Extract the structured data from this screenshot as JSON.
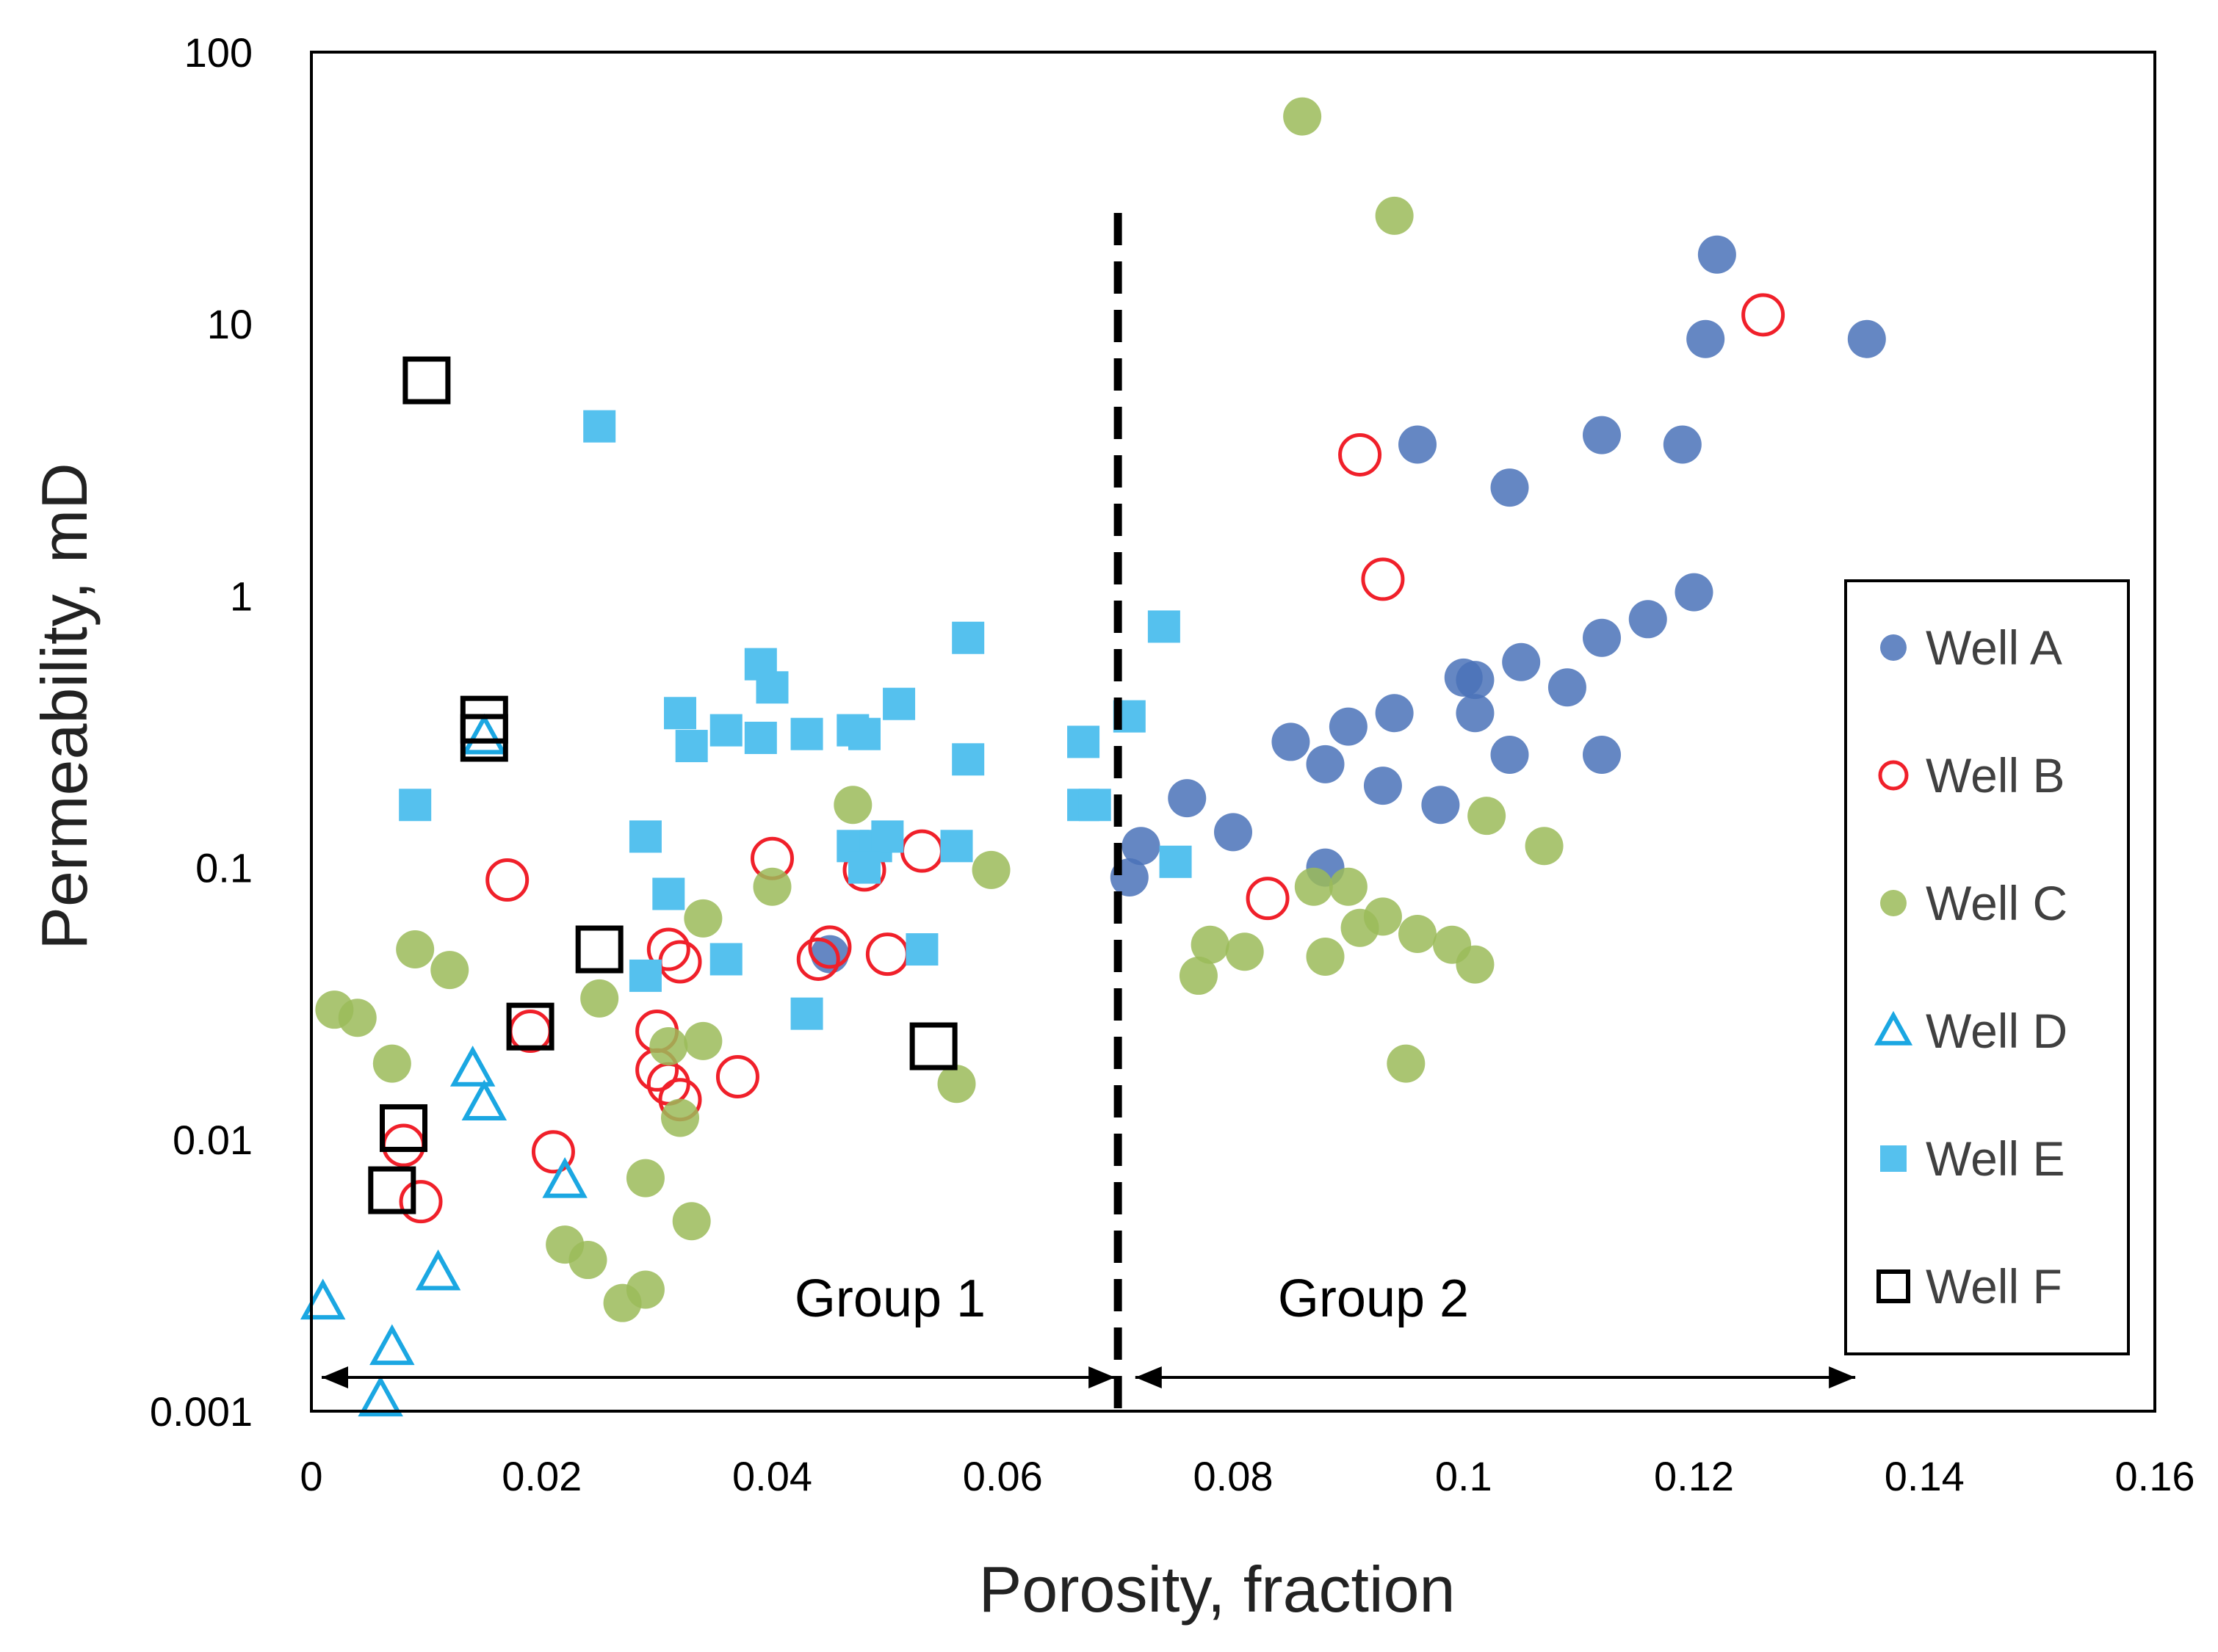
{
  "chart_data": {
    "type": "scatter",
    "title": "",
    "xlabel": "Porosity, fraction",
    "ylabel": "Permeability, mD",
    "xlim": [
      0,
      0.16
    ],
    "ylim": [
      0.001,
      100
    ],
    "yscale": "log",
    "x_ticks": [
      "0",
      "0.02",
      "0.04",
      "0.06",
      "0.08",
      "0.1",
      "0.12",
      "0.14",
      "0.16"
    ],
    "y_ticks": [
      "100",
      "10",
      "1",
      "0.1",
      "0.01",
      "0.001"
    ],
    "grid": false,
    "legend_position": "right",
    "divider_x": 0.07,
    "groups": [
      {
        "label": "Group 1",
        "x_range": [
          0,
          0.07
        ],
        "label_x": 0.05,
        "label_y": 0.0025
      },
      {
        "label": "Group 2",
        "x_range": [
          0.071,
          0.134
        ],
        "label_x": 0.092,
        "label_y": 0.0025
      }
    ],
    "series": [
      {
        "name": "Well A",
        "marker": "filled-circle",
        "color": "#4A72B8",
        "points": [
          [
            0.122,
            18
          ],
          [
            0.121,
            8.8
          ],
          [
            0.135,
            8.8
          ],
          [
            0.112,
            3.9
          ],
          [
            0.119,
            3.6
          ],
          [
            0.096,
            3.6
          ],
          [
            0.104,
            2.5
          ],
          [
            0.12,
            1.03
          ],
          [
            0.116,
            0.82
          ],
          [
            0.112,
            0.7
          ],
          [
            0.105,
            0.57
          ],
          [
            0.1,
            0.5
          ],
          [
            0.101,
            0.49
          ],
          [
            0.109,
            0.46
          ],
          [
            0.101,
            0.37
          ],
          [
            0.094,
            0.37
          ],
          [
            0.09,
            0.33
          ],
          [
            0.085,
            0.29
          ],
          [
            0.088,
            0.24
          ],
          [
            0.104,
            0.26
          ],
          [
            0.112,
            0.26
          ],
          [
            0.093,
            0.2
          ],
          [
            0.098,
            0.17
          ],
          [
            0.076,
            0.18
          ],
          [
            0.08,
            0.135
          ],
          [
            0.072,
            0.12
          ],
          [
            0.071,
            0.092
          ],
          [
            0.088,
            0.1
          ],
          [
            0.045,
            0.048
          ]
        ]
      },
      {
        "name": "Well B",
        "marker": "open-circle",
        "color": "#F0202A",
        "points": [
          [
            0.126,
            10.8
          ],
          [
            0.091,
            3.3
          ],
          [
            0.093,
            1.15
          ],
          [
            0.083,
            0.077
          ],
          [
            0.017,
            0.09
          ],
          [
            0.04,
            0.108
          ],
          [
            0.048,
            0.098
          ],
          [
            0.053,
            0.115
          ],
          [
            0.031,
            0.05
          ],
          [
            0.032,
            0.045
          ],
          [
            0.044,
            0.046
          ],
          [
            0.045,
            0.051
          ],
          [
            0.05,
            0.048
          ],
          [
            0.019,
            0.025
          ],
          [
            0.03,
            0.025
          ],
          [
            0.03,
            0.018
          ],
          [
            0.031,
            0.016
          ],
          [
            0.032,
            0.014
          ],
          [
            0.037,
            0.017
          ],
          [
            0.021,
            0.009
          ],
          [
            0.008,
            0.0095
          ],
          [
            0.0095,
            0.0059
          ]
        ]
      },
      {
        "name": "Well C",
        "marker": "filled-circle",
        "color": "#9BBB59",
        "points": [
          [
            0.086,
            58
          ],
          [
            0.094,
            25
          ],
          [
            0.102,
            0.155
          ],
          [
            0.107,
            0.12
          ],
          [
            0.059,
            0.098
          ],
          [
            0.047,
            0.17
          ],
          [
            0.04,
            0.085
          ],
          [
            0.034,
            0.065
          ],
          [
            0.009,
            0.05
          ],
          [
            0.012,
            0.042
          ],
          [
            0.087,
            0.085
          ],
          [
            0.09,
            0.085
          ],
          [
            0.091,
            0.06
          ],
          [
            0.093,
            0.066
          ],
          [
            0.096,
            0.057
          ],
          [
            0.099,
            0.052
          ],
          [
            0.101,
            0.044
          ],
          [
            0.078,
            0.052
          ],
          [
            0.081,
            0.049
          ],
          [
            0.077,
            0.04
          ],
          [
            0.088,
            0.047
          ],
          [
            0.095,
            0.019
          ],
          [
            0.002,
            0.03
          ],
          [
            0.004,
            0.028
          ],
          [
            0.007,
            0.019
          ],
          [
            0.025,
            0.033
          ],
          [
            0.031,
            0.022
          ],
          [
            0.034,
            0.023
          ],
          [
            0.032,
            0.012
          ],
          [
            0.056,
            0.016
          ],
          [
            0.029,
            0.0072
          ],
          [
            0.033,
            0.005
          ],
          [
            0.022,
            0.0041
          ],
          [
            0.024,
            0.0036
          ],
          [
            0.027,
            0.0025
          ],
          [
            0.029,
            0.0028
          ]
        ]
      },
      {
        "name": "Well D",
        "marker": "open-triangle",
        "color": "#1BA7E2",
        "points": [
          [
            0.015,
            0.3
          ],
          [
            0.014,
            0.018
          ],
          [
            0.015,
            0.0135
          ],
          [
            0.022,
            0.007
          ],
          [
            0.011,
            0.0032
          ],
          [
            0.001,
            0.0025
          ],
          [
            0.007,
            0.0017
          ],
          [
            0.006,
            0.0011
          ]
        ]
      },
      {
        "name": "Well E",
        "marker": "filled-square",
        "color": "#55C1EE",
        "points": [
          [
            0.025,
            4.2
          ],
          [
            0.057,
            0.7
          ],
          [
            0.074,
            0.77
          ],
          [
            0.039,
            0.56
          ],
          [
            0.04,
            0.46
          ],
          [
            0.051,
            0.4
          ],
          [
            0.032,
            0.37
          ],
          [
            0.071,
            0.36
          ],
          [
            0.036,
            0.32
          ],
          [
            0.039,
            0.3
          ],
          [
            0.043,
            0.31
          ],
          [
            0.047,
            0.32
          ],
          [
            0.048,
            0.31
          ],
          [
            0.033,
            0.28
          ],
          [
            0.067,
            0.29
          ],
          [
            0.057,
            0.25
          ],
          [
            0.009,
            0.17
          ],
          [
            0.067,
            0.17
          ],
          [
            0.068,
            0.17
          ],
          [
            0.029,
            0.13
          ],
          [
            0.047,
            0.12
          ],
          [
            0.049,
            0.12
          ],
          [
            0.05,
            0.13
          ],
          [
            0.056,
            0.12
          ],
          [
            0.075,
            0.105
          ],
          [
            0.048,
            0.1
          ],
          [
            0.031,
            0.08
          ],
          [
            0.053,
            0.05
          ],
          [
            0.036,
            0.046
          ],
          [
            0.029,
            0.04
          ],
          [
            0.043,
            0.029
          ]
        ]
      },
      {
        "name": "Well F",
        "marker": "open-square",
        "color": "#000000",
        "points": [
          [
            0.01,
            6.2
          ],
          [
            0.015,
            0.35
          ],
          [
            0.015,
            0.3
          ],
          [
            0.025,
            0.05
          ],
          [
            0.019,
            0.026
          ],
          [
            0.054,
            0.022
          ],
          [
            0.008,
            0.011
          ],
          [
            0.007,
            0.0065
          ]
        ]
      }
    ]
  }
}
